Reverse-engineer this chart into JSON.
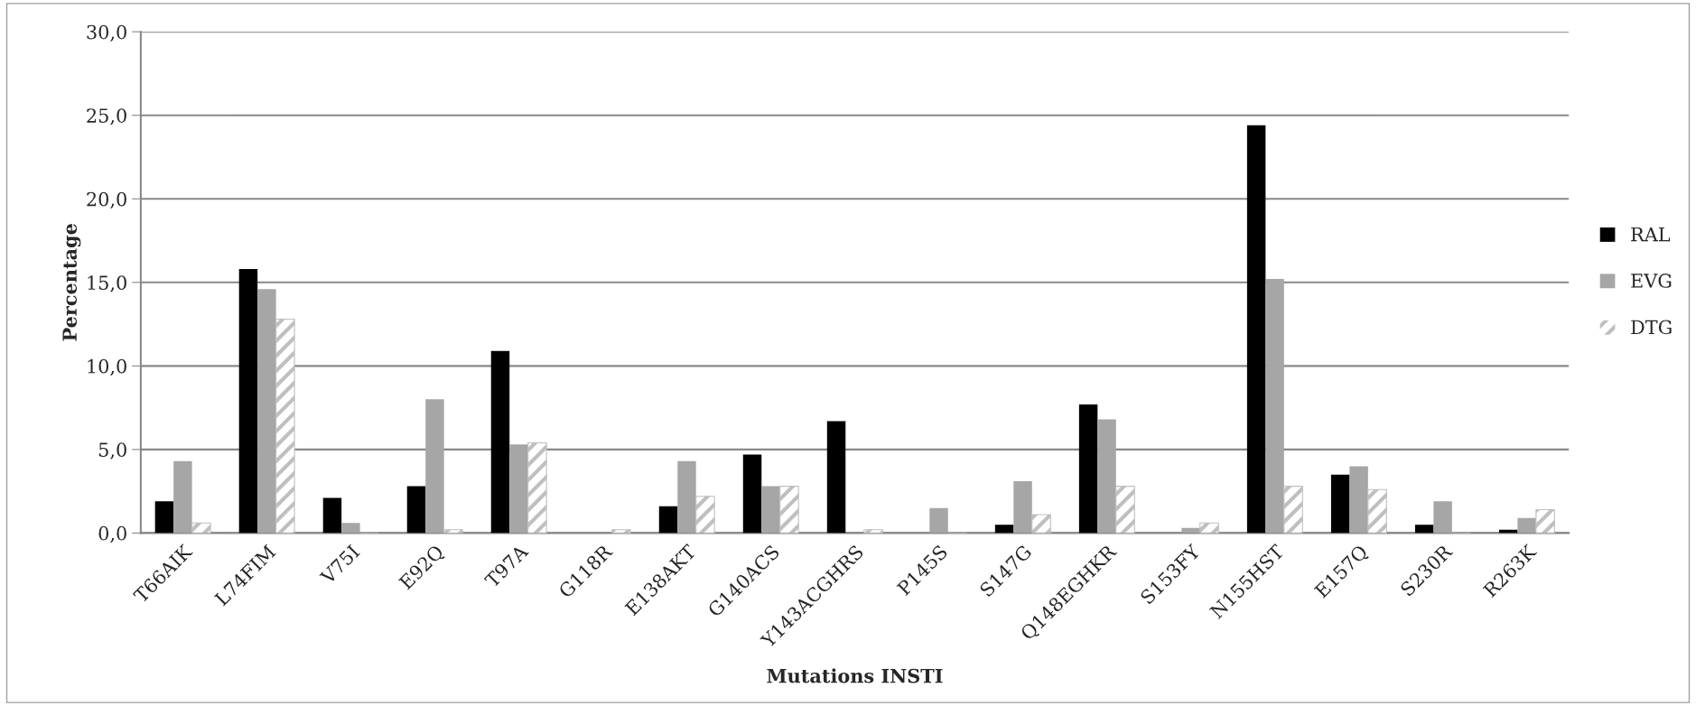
{
  "chart_data": {
    "type": "bar",
    "xlabel": "Mutations INSTI",
    "ylabel": "Percentage",
    "categories": [
      "T66AIK",
      "L74FIM",
      "V75I",
      "E92Q",
      "T97A",
      "G118R",
      "E138AKT",
      "G140ACS",
      "Y143ACGHRS",
      "P145S",
      "S147G",
      "Q148EGHKR",
      "S153FY",
      "N155HST",
      "E157Q",
      "S230R",
      "R263K"
    ],
    "series": [
      {
        "name": "RAL",
        "color": "#000000",
        "values": [
          1.9,
          15.8,
          2.1,
          2.8,
          10.9,
          0,
          1.6,
          4.7,
          6.7,
          0,
          0.5,
          7.7,
          0,
          24.4,
          3.5,
          0.5,
          0.2
        ]
      },
      {
        "name": "EVG",
        "color": "#a6a6a6",
        "values": [
          4.3,
          14.6,
          0.6,
          8.0,
          5.3,
          0,
          4.3,
          2.8,
          0,
          1.5,
          3.1,
          6.8,
          0.3,
          15.2,
          4.0,
          1.9,
          0.9
        ]
      },
      {
        "name": "DTG",
        "color": "#bfbfbf",
        "values": [
          0.6,
          12.8,
          0,
          0.2,
          5.4,
          0.2,
          2.2,
          2.8,
          0.2,
          0,
          1.1,
          2.8,
          0.6,
          2.8,
          2.6,
          0,
          1.4
        ]
      }
    ],
    "ylim": [
      0,
      30
    ],
    "yticks": [
      {
        "value": 0,
        "label": "0,0"
      },
      {
        "value": 5,
        "label": "5,0"
      },
      {
        "value": 10,
        "label": "10,0"
      },
      {
        "value": 15,
        "label": "15,0"
      },
      {
        "value": 20,
        "label": "20,0"
      },
      {
        "value": 25,
        "label": "25,0"
      },
      {
        "value": 30,
        "label": "30,0"
      }
    ],
    "grid": "y",
    "legend": "right"
  }
}
